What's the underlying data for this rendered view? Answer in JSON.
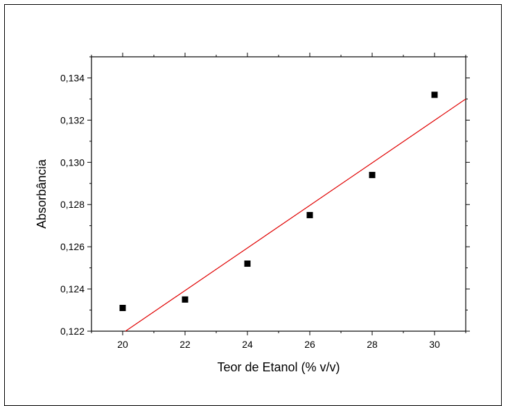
{
  "chart_data": {
    "type": "scatter",
    "xlabel": "Teor de Etanol (% v/v)",
    "ylabel": "Absorbância",
    "xlim": [
      19,
      31
    ],
    "ylim": [
      0.122,
      0.135
    ],
    "xticks": [
      20,
      22,
      24,
      26,
      28,
      30
    ],
    "xtick_labels": [
      "20",
      "22",
      "24",
      "26",
      "28",
      "30"
    ],
    "yticks": [
      0.122,
      0.124,
      0.126,
      0.128,
      0.13,
      0.132,
      0.134
    ],
    "ytick_labels": [
      "0,122",
      "0,124",
      "0,126",
      "0,128",
      "0,130",
      "0,132",
      "0,134"
    ],
    "series": [
      {
        "kind": "points",
        "marker": "square",
        "color": "#000000",
        "x": [
          20,
          22,
          24,
          26,
          28,
          30
        ],
        "y": [
          0.1231,
          0.1235,
          0.1252,
          0.1275,
          0.1294,
          0.1332
        ]
      },
      {
        "kind": "fit-line",
        "color": "#e00000",
        "x": [
          20.09,
          31
        ],
        "y": [
          0.122,
          0.133
        ]
      }
    ],
    "grid": false,
    "legend": "none"
  }
}
